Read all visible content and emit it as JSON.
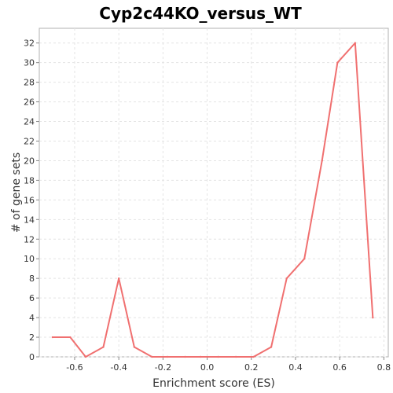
{
  "chart_data": {
    "type": "line",
    "title": "Cyp2c44KO_versus_WT",
    "xlabel": "Enrichment score (ES)",
    "ylabel": "# of gene sets",
    "xlim": [
      -0.76,
      0.82
    ],
    "ylim": [
      0,
      33.5
    ],
    "grid": true,
    "legend": "none",
    "x_ticks": [
      -0.6,
      -0.4,
      -0.2,
      0.0,
      0.2,
      0.4,
      0.6,
      0.8
    ],
    "x_tick_labels": [
      "-0.6",
      "-0.4",
      "-0.2",
      "0.0",
      "0.2",
      "0.4",
      "0.6",
      "0.8"
    ],
    "y_ticks": [
      0,
      2,
      4,
      6,
      8,
      10,
      12,
      14,
      16,
      18,
      20,
      22,
      24,
      26,
      28,
      30,
      32
    ],
    "y_tick_labels": [
      "0",
      "2",
      "4",
      "6",
      "8",
      "10",
      "12",
      "14",
      "16",
      "18",
      "20",
      "22",
      "24",
      "26",
      "28",
      "30",
      "32"
    ],
    "series": [
      {
        "color": "#f07070",
        "x": [
          -0.7,
          -0.62,
          -0.55,
          -0.47,
          -0.4,
          -0.33,
          -0.25,
          -0.18,
          -0.1,
          -0.03,
          0.05,
          0.13,
          0.21,
          0.29,
          0.36,
          0.44,
          0.52,
          0.59,
          0.67,
          0.75
        ],
        "y": [
          2,
          2,
          0,
          1,
          8,
          1,
          0,
          0,
          0,
          0,
          0,
          0,
          0,
          1,
          8,
          10,
          20,
          30,
          32,
          4
        ]
      }
    ]
  }
}
